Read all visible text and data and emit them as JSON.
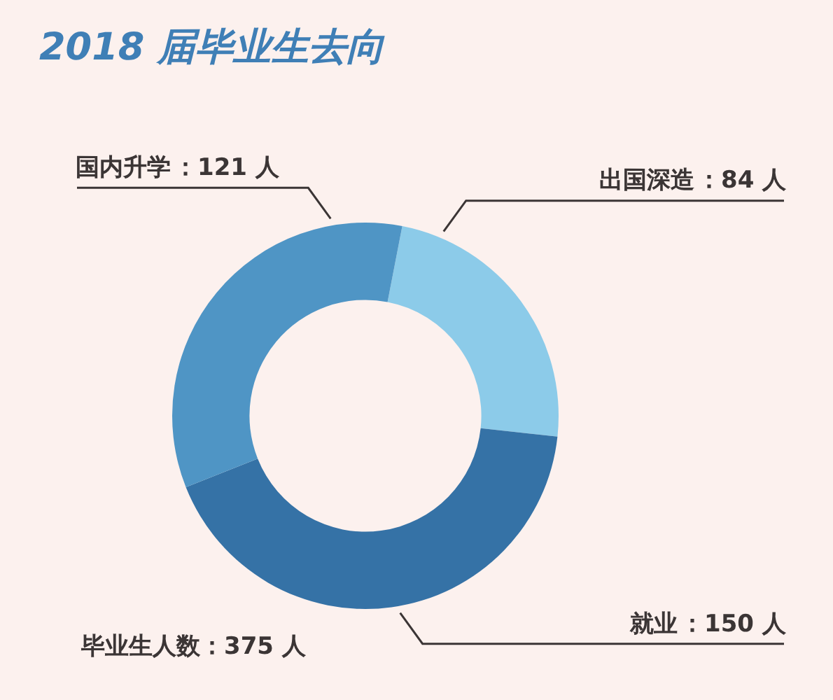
{
  "chart_data": {
    "type": "donut",
    "title": "2018 届毕业生去向",
    "categories": [
      "出国深造",
      "就业",
      "国内升学"
    ],
    "values": [
      84,
      150,
      121
    ],
    "colors": [
      "#8ccbe9",
      "#3572a6",
      "#4f95c5"
    ],
    "value_labels": [
      "：84 人",
      "：150 人",
      "：121 人"
    ],
    "annotations": [
      "毕业生人数：375 人"
    ]
  }
}
